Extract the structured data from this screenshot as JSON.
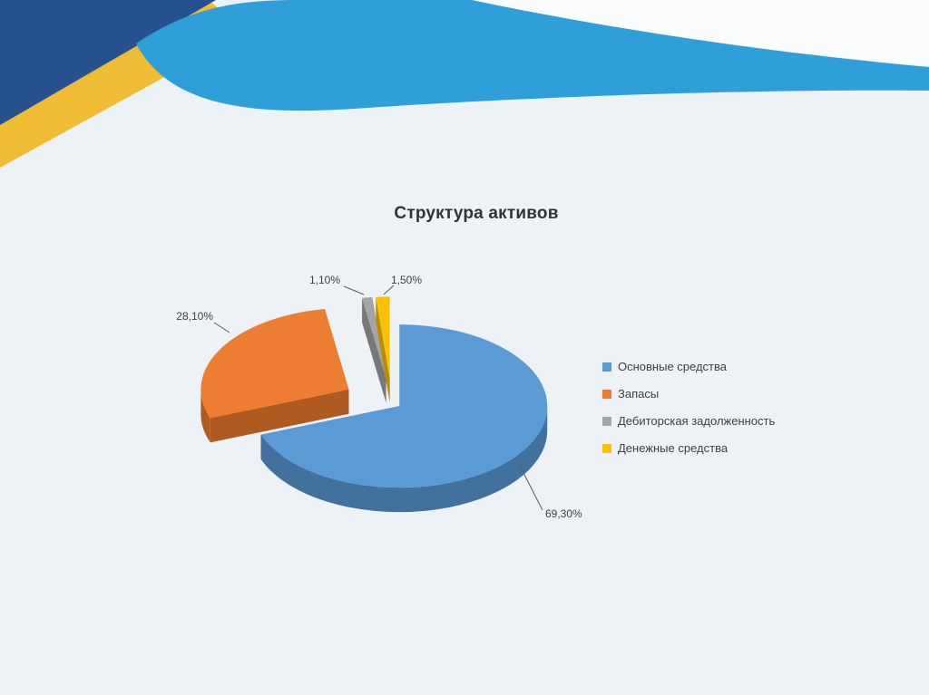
{
  "slide": {
    "background": "#edf2f7",
    "theme": {
      "navy": "#27508E",
      "gold": "#F0BC33",
      "swoosh_blue": "#2F9FD9",
      "top_white": "#fafcfe"
    }
  },
  "chart_data": {
    "type": "pie",
    "style": "3d-exploded",
    "title": "Структура активов",
    "legend_position": "right",
    "units": "%",
    "series": [
      {
        "name": "Основные средства",
        "value": 69.3,
        "label": "69,30%",
        "color": "#5B9BD5",
        "side_color": "#41719C"
      },
      {
        "name": "Запасы",
        "value": 28.1,
        "label": "28,10%",
        "color": "#ED7D31",
        "side_color": "#AE5A21"
      },
      {
        "name": "Дебиторская задолженность",
        "value": 1.1,
        "label": "1,10%",
        "color": "#A5A5A5",
        "side_color": "#787878"
      },
      {
        "name": "Денежные средства",
        "value": 1.5,
        "label": "1,50%",
        "color": "#FFC000",
        "side_color": "#BC8C00"
      }
    ]
  }
}
